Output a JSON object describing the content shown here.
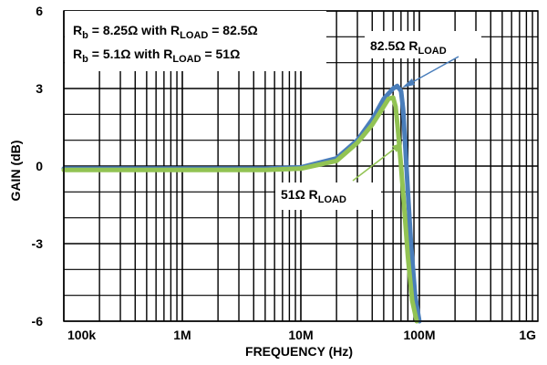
{
  "chart_data": {
    "type": "line",
    "title": "",
    "xlabel": "FREQUENCY (Hz)",
    "ylabel": "GAIN (dB)",
    "x_scale": "log",
    "xlim": [
      100000,
      1000000000
    ],
    "ylim": [
      -6,
      6
    ],
    "grid": true,
    "x_tick_labels": [
      "100k",
      "1M",
      "10M",
      "100M",
      "1G"
    ],
    "y_tick_labels": [
      "6",
      "3",
      "0",
      "-3",
      "-6"
    ],
    "legend_lines": [
      {
        "main": "R",
        "sub": "b",
        "mid": " = 8.25Ω with R",
        "sub2": "LOAD",
        "end": " = 82.5Ω"
      },
      {
        "main": "R",
        "sub": "b",
        "mid": " = 5.1Ω with R",
        "sub2": "LOAD",
        "end": " = 51Ω"
      }
    ],
    "annotations": [
      {
        "main": "82.5Ω R",
        "sub": "LOAD"
      },
      {
        "main": "51Ω R",
        "sub": "LOAD"
      }
    ],
    "series": [
      {
        "color": "#4a7ebb",
        "x": [
          100000,
          1000000,
          5000000,
          10000000,
          20000000,
          30000000,
          40000000,
          50000000,
          60000000,
          65000000,
          70000000,
          73000000,
          76000000,
          80000000,
          85000000,
          92000000,
          100000000
        ],
        "y": [
          -0.1,
          -0.1,
          -0.1,
          -0.05,
          0.3,
          1.0,
          1.8,
          2.6,
          3.0,
          3.1,
          2.9,
          2.2,
          0.8,
          -1.0,
          -3.0,
          -5.0,
          -6.0
        ]
      },
      {
        "color": "#92c353",
        "x": [
          100000,
          1000000,
          5000000,
          10000000,
          20000000,
          30000000,
          40000000,
          50000000,
          55000000,
          60000000,
          63000000,
          66000000,
          70000000,
          75000000,
          80000000,
          87000000,
          95000000
        ],
        "y": [
          -0.15,
          -0.15,
          -0.15,
          -0.1,
          0.2,
          0.9,
          1.6,
          2.3,
          2.6,
          2.65,
          2.3,
          1.4,
          0.0,
          -1.8,
          -3.5,
          -5.2,
          -6.0
        ]
      }
    ]
  }
}
